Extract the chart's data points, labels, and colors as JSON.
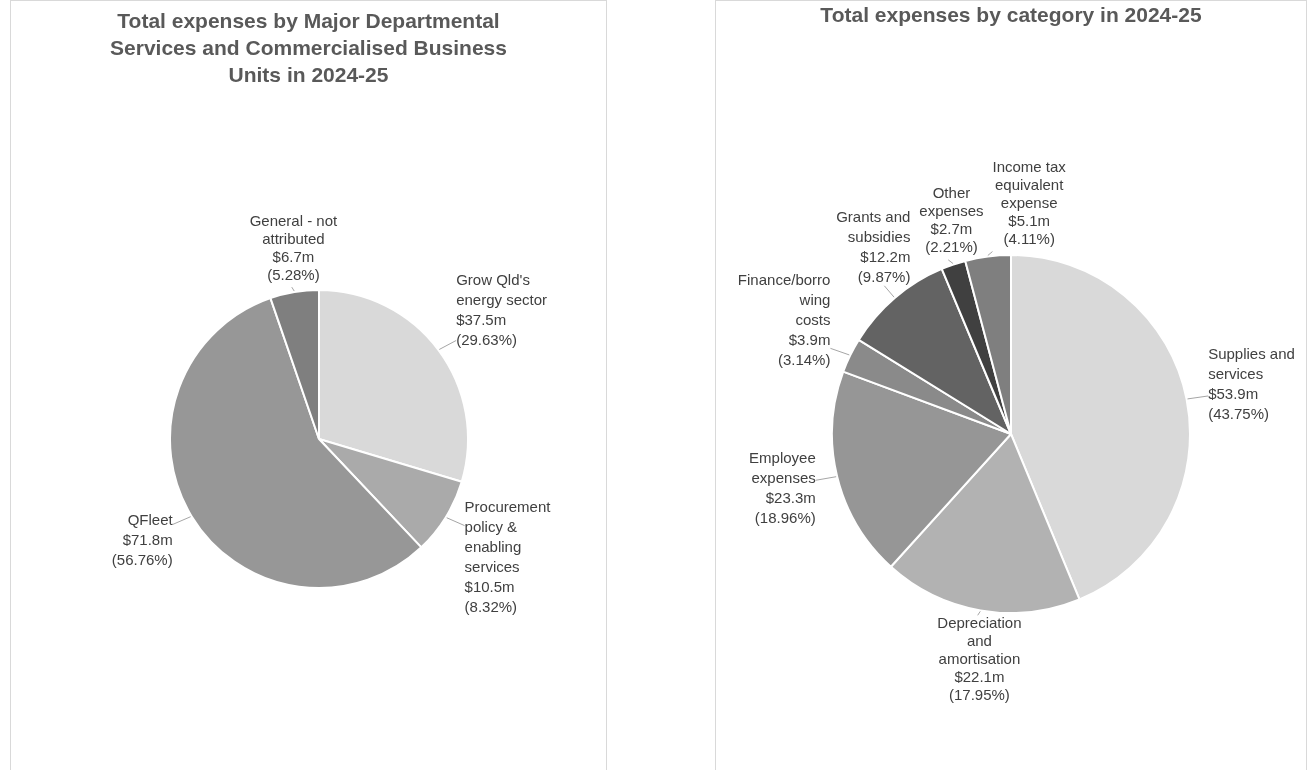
{
  "chart_data": [
    {
      "type": "pie",
      "title": "Total expenses by Major Departmental Services and Commercialised Business Units in 2024-25",
      "categories": [
        "Grow Qld's energy sector",
        "Procurement policy & enabling services",
        "QFleet",
        "General - not attributed"
      ],
      "values": [
        29.63,
        8.32,
        56.76,
        5.28
      ],
      "colors": [
        "#d9d9d9",
        "#aaaaaa",
        "#979797",
        "#7f7f7f"
      ],
      "value_labels": [
        "$37.5m (29.63%)",
        "$10.5m (8.32%)",
        "$71.8m (56.76%)",
        "$6.7m (5.28%)"
      ],
      "legend": false
    },
    {
      "type": "pie",
      "title": "Total expenses by category in 2024-25",
      "categories": [
        "Supplies and services",
        "Depreciation and amortisation",
        "Employee expenses",
        "Finance/borrowing costs",
        "Grants and subsidies",
        "Other expenses",
        "Income tax equivalent expense"
      ],
      "values": [
        43.75,
        17.95,
        18.96,
        3.14,
        9.87,
        2.21,
        4.11
      ],
      "colors": [
        "#d9d9d9",
        "#b2b2b2",
        "#969696",
        "#8a8a8a",
        "#636363",
        "#404040",
        "#7f7f7f"
      ],
      "value_labels": [
        "$53.9m (43.75%)",
        "$22.1m (17.95%)",
        "$23.3m (18.96%)",
        "$3.9m (3.14%)",
        "$12.2m (9.87%)",
        "$2.7m (2.21%)",
        "$5.1m (4.11%)"
      ],
      "legend": false
    }
  ]
}
